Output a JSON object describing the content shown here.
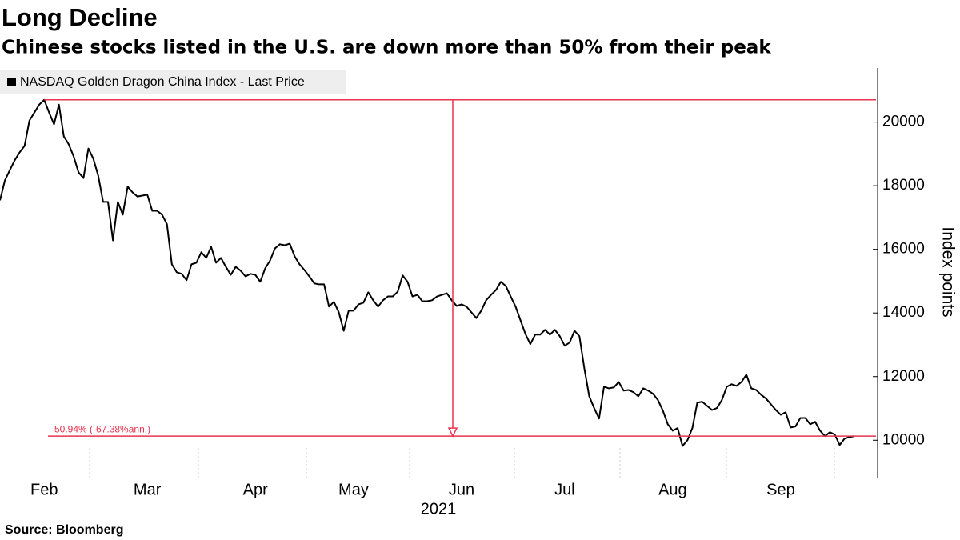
{
  "chart_data": {
    "type": "line",
    "title": "Long Decline",
    "subtitle": "Chinese stocks listed in the U.S. are down more than 50% from their peak",
    "source": "Source: Bloomberg",
    "y_axis_label": "Index points",
    "x_axis_label": "2021",
    "annotation": "-50.94% (-67.38%ann.)",
    "categories": [
      null,
      null,
      null,
      null,
      null,
      null,
      null,
      null,
      null,
      "Feb",
      null,
      null,
      null,
      null,
      null,
      null,
      null,
      null,
      null,
      null,
      null,
      null,
      null,
      null,
      null,
      null,
      null,
      null,
      null,
      null,
      "Mar",
      null,
      null,
      null,
      null,
      null,
      null,
      null,
      null,
      null,
      null,
      null,
      null,
      null,
      null,
      null,
      null,
      null,
      null,
      null,
      null,
      null,
      "Apr",
      null,
      null,
      null,
      null,
      null,
      null,
      null,
      null,
      null,
      null,
      null,
      null,
      null,
      null,
      null,
      null,
      null,
      null,
      null,
      "May",
      null,
      null,
      null,
      null,
      null,
      null,
      null,
      null,
      null,
      null,
      null,
      null,
      null,
      null,
      null,
      null,
      null,
      null,
      null,
      null,
      null,
      "Jun",
      null,
      null,
      null,
      null,
      null,
      null,
      null,
      null,
      null,
      null,
      null,
      null,
      null,
      null,
      null,
      null,
      null,
      null,
      null,
      null,
      "Jul",
      null,
      null,
      null,
      null,
      null,
      null,
      null,
      null,
      null,
      null,
      null,
      null,
      null,
      null,
      null,
      null,
      null,
      null,
      null,
      null,
      null,
      "Aug",
      null,
      null,
      null,
      null,
      null,
      null,
      null,
      null,
      null,
      null,
      null,
      null,
      null,
      null,
      null,
      null,
      null,
      null,
      null,
      null,
      null,
      "Sep",
      null,
      null,
      null,
      null,
      null,
      null,
      null,
      null,
      null,
      null,
      null,
      null,
      null,
      null,
      null
    ],
    "series": [
      {
        "name": "NASDAQ Golden Dragon China Index - Last Price",
        "color": "#000000",
        "values": [
          17540,
          18170,
          18490,
          18800,
          19050,
          19250,
          20050,
          20300,
          20550,
          20700,
          20300,
          19930,
          20550,
          19550,
          19300,
          18920,
          18420,
          18240,
          19170,
          18850,
          18320,
          17490,
          17490,
          16280,
          17490,
          17090,
          17970,
          17790,
          17660,
          17690,
          17720,
          17210,
          17210,
          17090,
          16790,
          15530,
          15280,
          15230,
          15030,
          15530,
          15580,
          15910,
          15730,
          16080,
          15580,
          15730,
          15450,
          15200,
          15450,
          15330,
          15150,
          15230,
          15200,
          14980,
          15400,
          15650,
          16030,
          16160,
          16130,
          16180,
          15780,
          15530,
          15350,
          15150,
          14930,
          14900,
          14900,
          14200,
          14350,
          14020,
          13440,
          14070,
          14070,
          14270,
          14320,
          14650,
          14400,
          14200,
          14400,
          14520,
          14520,
          14670,
          15180,
          14980,
          14520,
          14570,
          14370,
          14370,
          14400,
          14520,
          14570,
          14620,
          14400,
          14220,
          14270,
          14200,
          14020,
          13840,
          14070,
          14400,
          14570,
          14720,
          14980,
          14850,
          14520,
          14200,
          13770,
          13340,
          13020,
          13320,
          13320,
          13470,
          13320,
          13470,
          13270,
          12970,
          13070,
          13440,
          13270,
          12260,
          11380,
          11010,
          10680,
          11680,
          11630,
          11660,
          11830,
          11560,
          11580,
          11510,
          11380,
          11630,
          11560,
          11460,
          11260,
          10930,
          10500,
          10300,
          10380,
          9820,
          10000,
          10380,
          11180,
          11210,
          11080,
          10950,
          11010,
          11260,
          11680,
          11760,
          11710,
          11830,
          12060,
          11630,
          11580,
          11430,
          11310,
          11130,
          10950,
          10800,
          10880,
          10400,
          10430,
          10700,
          10700,
          10500,
          10580,
          10300,
          10130,
          10250,
          10180,
          9850,
          10050,
          10100,
          10130
        ]
      }
    ],
    "ylim": [
      8800,
      21700
    ],
    "yticks": [
      10000,
      12000,
      14000,
      16000,
      18000,
      20000
    ],
    "grid": false
  }
}
